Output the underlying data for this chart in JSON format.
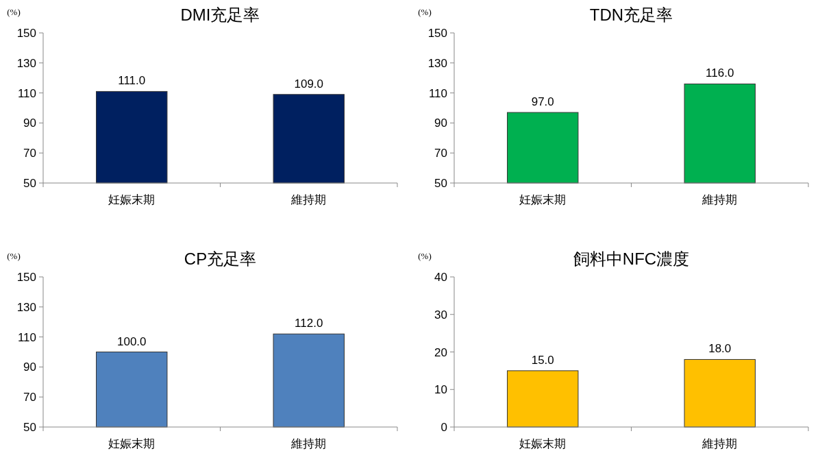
{
  "chart_data": [
    {
      "type": "bar",
      "title": "DMI充足率",
      "ylabel": "(%)",
      "categories": [
        "妊娠末期",
        "維持期"
      ],
      "values": [
        111.0,
        109.0
      ],
      "value_labels": [
        "111.0",
        "109.0"
      ],
      "color": "#002060",
      "ylim": [
        50,
        150
      ],
      "yticks": [
        50,
        70,
        90,
        110,
        130,
        150
      ]
    },
    {
      "type": "bar",
      "title": "TDN充足率",
      "ylabel": "(%)",
      "categories": [
        "妊娠末期",
        "維持期"
      ],
      "values": [
        97.0,
        116.0
      ],
      "value_labels": [
        "97.0",
        "116.0"
      ],
      "color": "#00b050",
      "ylim": [
        50,
        150
      ],
      "yticks": [
        50,
        70,
        90,
        110,
        130,
        150
      ]
    },
    {
      "type": "bar",
      "title": "CP充足率",
      "ylabel": "(%)",
      "categories": [
        "妊娠末期",
        "維持期"
      ],
      "values": [
        100.0,
        112.0
      ],
      "value_labels": [
        "100.0",
        "112.0"
      ],
      "color": "#4f81bd",
      "ylim": [
        50,
        150
      ],
      "yticks": [
        50,
        70,
        90,
        110,
        130,
        150
      ]
    },
    {
      "type": "bar",
      "title": "飼料中NFC濃度",
      "ylabel": "(%)",
      "categories": [
        "妊娠末期",
        "維持期"
      ],
      "values": [
        15.0,
        18.0
      ],
      "value_labels": [
        "15.0",
        "18.0"
      ],
      "color": "#ffc000",
      "ylim": [
        0,
        40
      ],
      "yticks": [
        0,
        10,
        20,
        30,
        40
      ]
    }
  ]
}
